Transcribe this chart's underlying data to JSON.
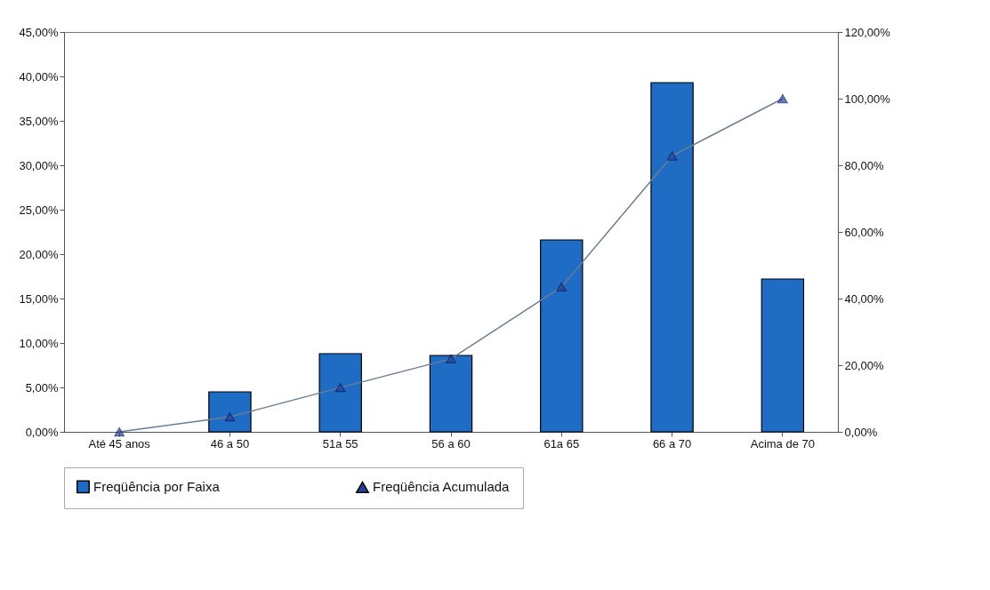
{
  "chart_data": {
    "type": "bar",
    "categories": [
      "Até 45 anos",
      "46 a 50",
      "51a 55",
      "56 a 60",
      "61a 65",
      "66 a 70",
      "Acima de 70"
    ],
    "series": [
      {
        "name": "Freqüência por Faixa",
        "color": "#1f6cc4",
        "values": [
          0,
          4.5,
          8.8,
          8.6,
          21.6,
          39.3,
          17.2
        ]
      },
      {
        "name": "Freqüência Acumulada",
        "type": "line",
        "axis": "y2",
        "color": "#2a3f9a",
        "values": [
          0,
          4.5,
          13.3,
          21.9,
          43.5,
          82.8,
          100
        ]
      }
    ],
    "ylim": [
      0,
      45
    ],
    "yticks": [
      {
        "value": 0,
        "label": "0,00%"
      },
      {
        "value": 5,
        "label": "5,00%"
      },
      {
        "value": 10,
        "label": "10,00%"
      },
      {
        "value": 15,
        "label": "15,00%"
      },
      {
        "value": 20,
        "label": "20,00%"
      },
      {
        "value": 25,
        "label": "25,00%"
      },
      {
        "value": 30,
        "label": "30,00%"
      },
      {
        "value": 35,
        "label": "35,00%"
      },
      {
        "value": 40,
        "label": "40,00%"
      },
      {
        "value": 45,
        "label": "45,00%"
      }
    ],
    "y2lim": [
      0,
      120
    ],
    "y2ticks": [
      {
        "value": 0,
        "label": "0,00%"
      },
      {
        "value": 20,
        "label": "20,00%"
      },
      {
        "value": 40,
        "label": "40,00%"
      },
      {
        "value": 60,
        "label": "60,00%"
      },
      {
        "value": 80,
        "label": "80,00%"
      },
      {
        "value": 100,
        "label": "100,00%"
      },
      {
        "value": 120,
        "label": "120,00%"
      }
    ],
    "marker": "triangle",
    "legend": "bottom",
    "grid": false
  }
}
